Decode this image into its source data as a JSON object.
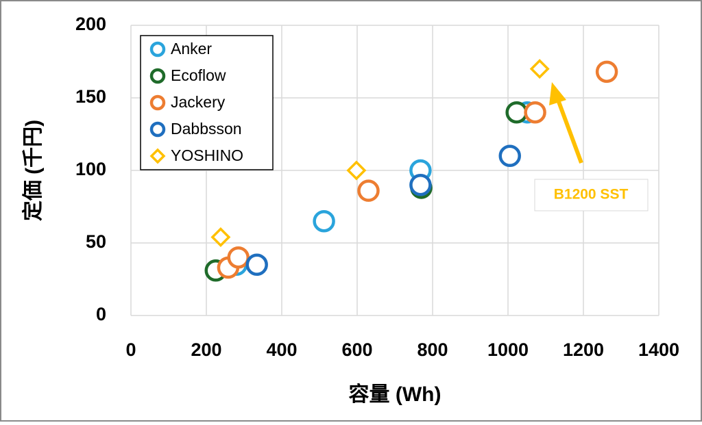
{
  "chart_data": {
    "type": "scatter",
    "x_label": "容量 (Wh)",
    "y_label": "定価 (千円)",
    "xlim": [
      0,
      1400
    ],
    "xticks": [
      0,
      200,
      400,
      600,
      800,
      1000,
      1200,
      1400
    ],
    "ylim": [
      0,
      200
    ],
    "yticks": [
      0,
      50,
      100,
      150,
      200
    ],
    "grid": true,
    "legend": "upper left",
    "annotation": "B1200 SST",
    "series": [
      {
        "name": "Anker",
        "color": "#2aa4dc",
        "marker": "circle",
        "x": [
          280,
          512,
          768,
          1051
        ],
        "values": [
          35,
          65,
          100,
          140
        ]
      },
      {
        "name": "Ecoflow",
        "color": "#1f6b2a",
        "marker": "circle",
        "x": [
          225,
          770,
          1023
        ],
        "values": [
          31,
          88,
          140
        ]
      },
      {
        "name": "Jackery",
        "color": "#ed7d31",
        "marker": "circle",
        "x": [
          258,
          285,
          630,
          1072,
          1262
        ],
        "values": [
          33,
          40,
          86,
          140,
          168
        ]
      },
      {
        "name": "Dabbsson",
        "color": "#1f6fbf",
        "marker": "circle",
        "x": [
          334,
          768,
          1005
        ],
        "values": [
          35,
          90,
          110
        ]
      },
      {
        "name": "YOSHINO",
        "color": "#ffc000",
        "marker": "diamond",
        "x": [
          238,
          598,
          1084
        ],
        "values": [
          54,
          100,
          170
        ]
      }
    ]
  }
}
